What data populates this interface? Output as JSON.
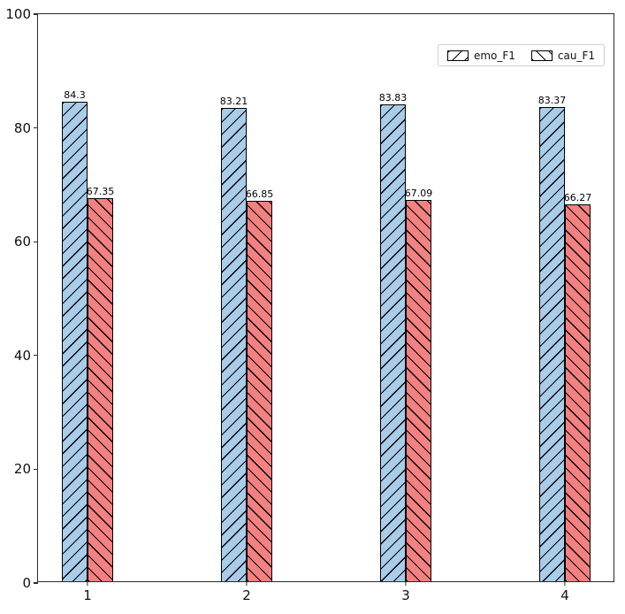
{
  "chart_data": {
    "type": "bar",
    "title": "",
    "xlabel": "",
    "ylabel": "",
    "categories": [
      "1",
      "2",
      "3",
      "4"
    ],
    "series": [
      {
        "name": "emo_F1",
        "values": [
          84.3,
          83.21,
          83.83,
          83.37
        ],
        "value_labels": [
          "84.3",
          "83.21",
          "83.83",
          "83.37"
        ],
        "color": "#a9cce9",
        "hatch": "/"
      },
      {
        "name": "cau_F1",
        "values": [
          67.35,
          66.85,
          67.09,
          66.27
        ],
        "value_labels": [
          "67.35",
          "66.85",
          "67.09",
          "66.27"
        ],
        "color": "#f48181",
        "hatch": "\\"
      }
    ],
    "ylim": [
      0,
      100
    ],
    "yticks": [
      0,
      20,
      40,
      60,
      80,
      100
    ],
    "ytick_labels": [
      "0",
      "20",
      "40",
      "60",
      "80",
      "100"
    ],
    "grid": false,
    "legend_position": "upper right",
    "bar_edge_color": "#000000",
    "spine_color": "#2b2b2b"
  }
}
